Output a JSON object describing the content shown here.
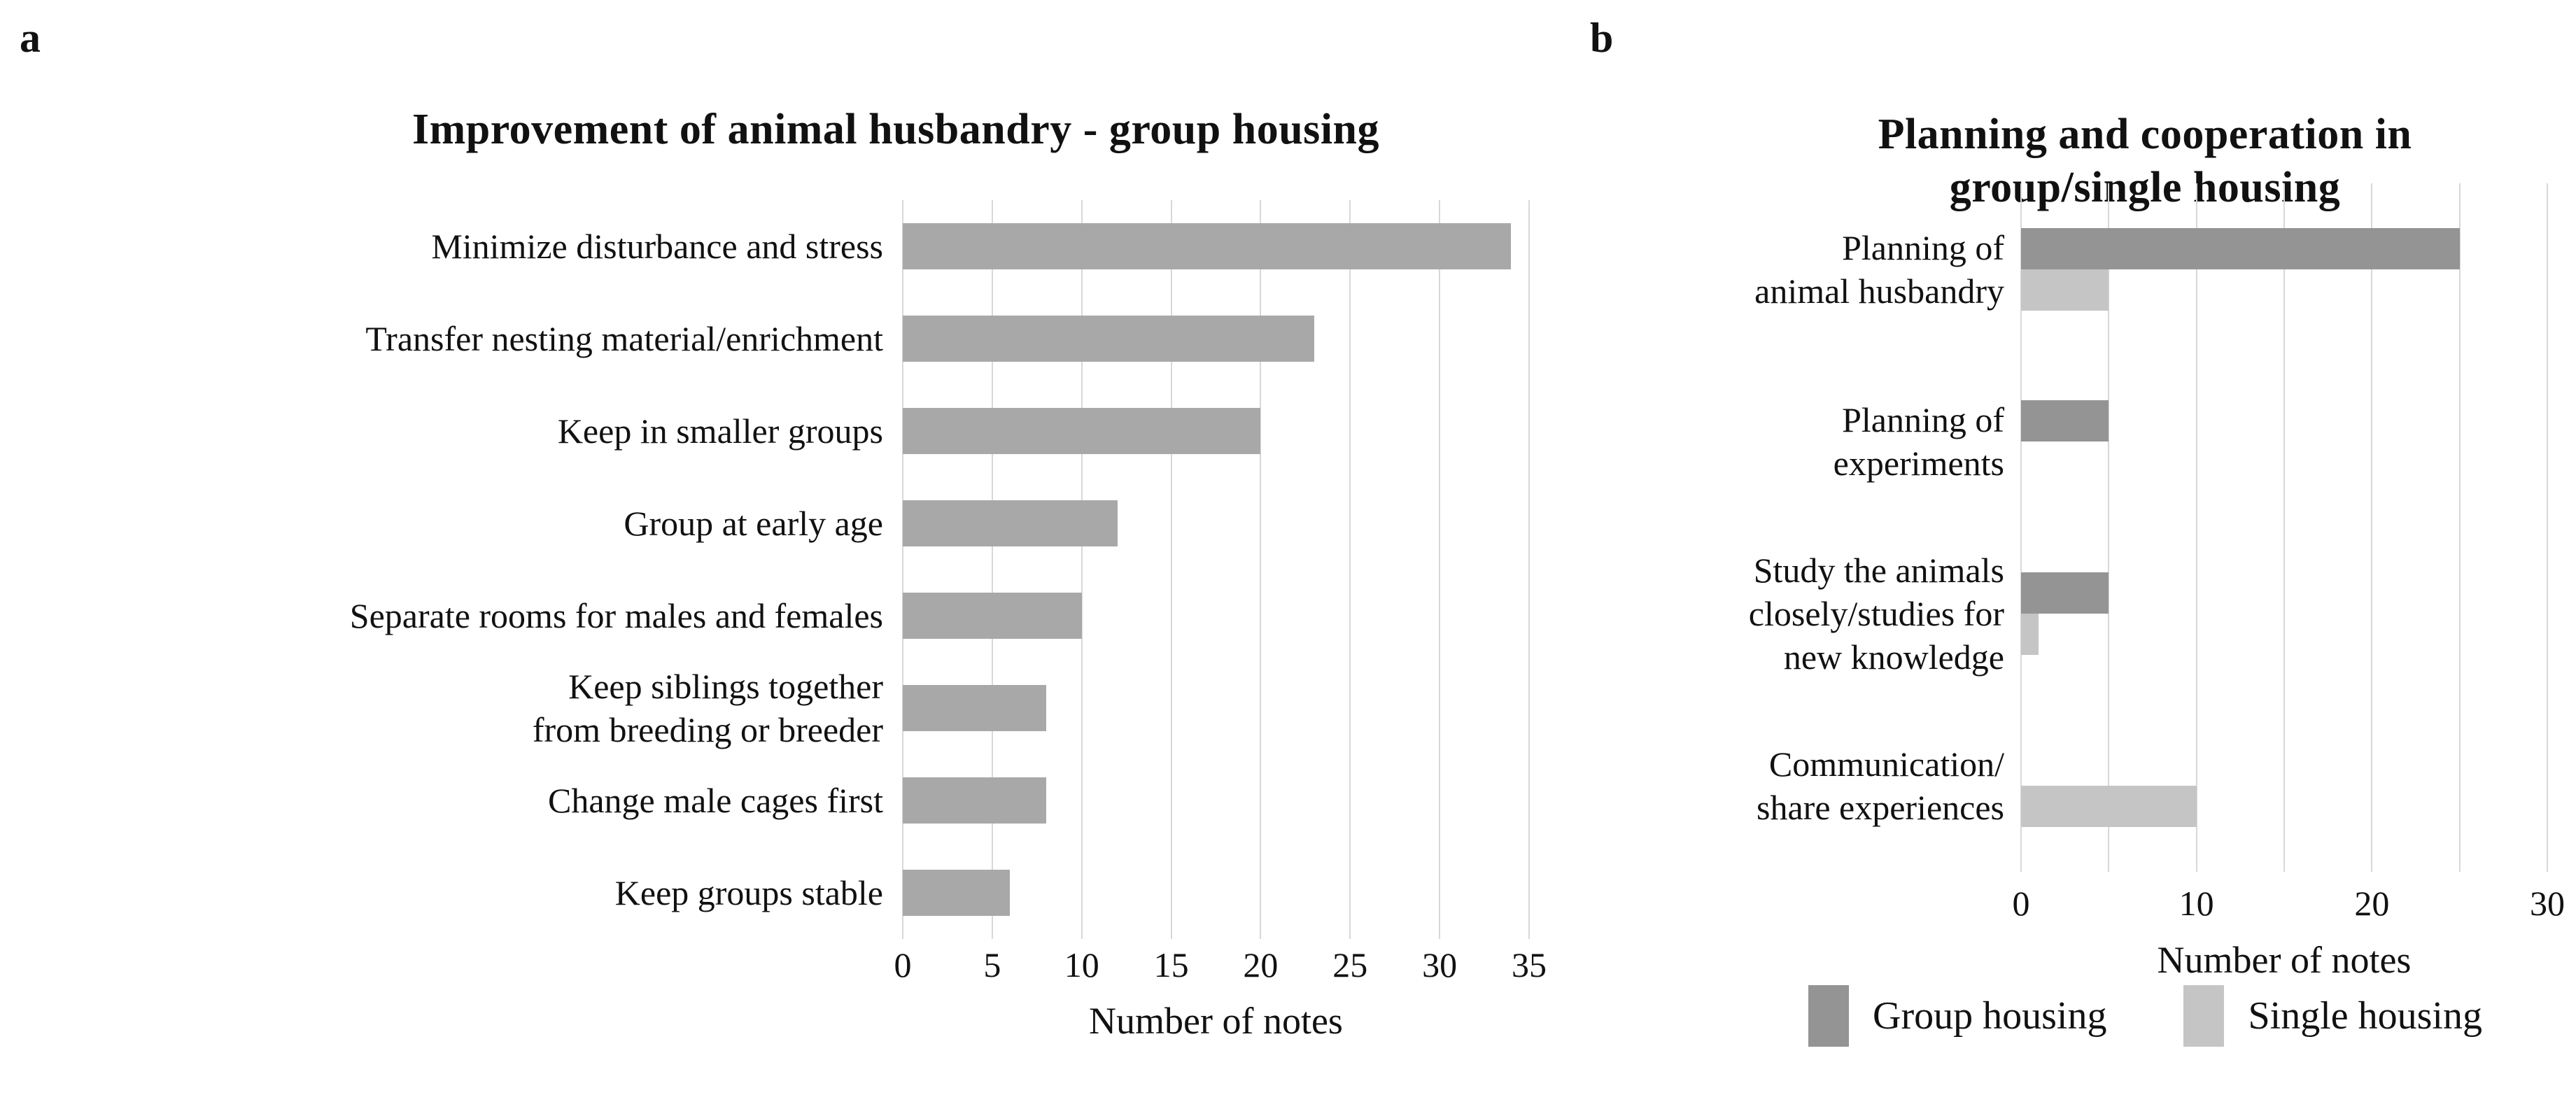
{
  "figure": {
    "background": "#ffffff",
    "text_color": "#111111",
    "gridline_color": "#d8d8d8"
  },
  "chart_data": [
    {
      "type": "bar",
      "orientation": "horizontal",
      "panel_label": "a",
      "title": "Improvement of animal husbandry - group housing",
      "categories": [
        "Minimize disturbance and stress",
        "Transfer nesting material/enrichment",
        "Keep in smaller groups",
        "Group at early age",
        "Separate rooms for males and females",
        "Keep siblings together\nfrom breeding or breeder",
        "Change male cages first",
        "Keep groups stable"
      ],
      "values": [
        34,
        23,
        20,
        12,
        10,
        8,
        8,
        6
      ],
      "bar_color": "#a8a8a8",
      "xlabel": "Number of notes",
      "xlim": [
        0,
        35
      ],
      "grid_step": 5,
      "tick_labels": [
        0,
        5,
        10,
        15,
        20,
        25,
        30,
        35
      ],
      "grid": true,
      "legend": false
    },
    {
      "type": "bar",
      "orientation": "horizontal",
      "panel_label": "b",
      "title": "Planning and cooperation in\ngroup/single housing",
      "categories": [
        "Planning of\nanimal husbandry",
        "Planning of\nexperiments",
        "Study the animals\nclosely/studies for\nnew knowledge",
        "Communication/\nshare experiences"
      ],
      "series": [
        {
          "name": "Group housing",
          "color": "#949494",
          "values": [
            25,
            5,
            5,
            0
          ]
        },
        {
          "name": "Single housing",
          "color": "#c5c5c5",
          "values": [
            5,
            0,
            1,
            10
          ]
        }
      ],
      "xlabel": "Number of notes",
      "xlim": [
        0,
        30
      ],
      "grid_step": 5,
      "tick_labels": [
        0,
        10,
        20,
        30
      ],
      "grid": true,
      "legend": true,
      "legend_position": "bottom"
    }
  ]
}
